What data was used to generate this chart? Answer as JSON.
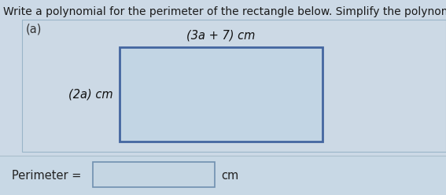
{
  "title": "Write a polynomial for the perimeter of the rectangle below. Simplify the polynomial.",
  "label_a": "(a)",
  "width_label": "(3a + 7) cm",
  "height_label": "(2a) cm",
  "perimeter_label": "Perimeter =",
  "perimeter_unit": "cm",
  "bg_color": "#cfe0ef",
  "rect_fill": "#c8dcea",
  "rect_edge_color": "#4a6fa0",
  "input_box_fill": "#c8dcea",
  "input_box_edge": "#7a9ab8",
  "title_fontsize": 10,
  "label_fontsize": 10.5,
  "fig_bg": "#ccd9e6",
  "outer_border_color": "#8aaac0",
  "perimeter_bg": "#c0d5e8"
}
